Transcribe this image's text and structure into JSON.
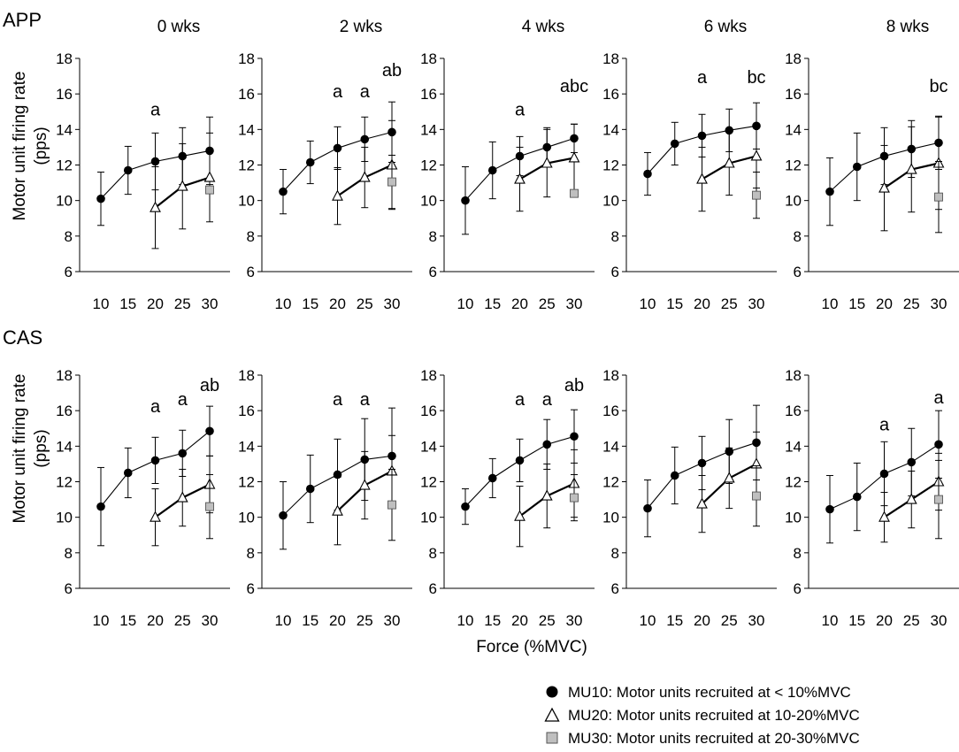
{
  "figure": {
    "xlabel": "Force (%MVC)",
    "ylabel_line1": "Motor unit firing rate",
    "ylabel_line2": "(pps)"
  },
  "legend": {
    "items": [
      {
        "series": "MU10",
        "label": "MU10: Motor units recruited at < 10%MVC"
      },
      {
        "series": "MU20",
        "label": "MU20: Motor units recruited at 10-20%MVC"
      },
      {
        "series": "MU30",
        "label": "MU30: Motor units recruited at 20-30%MVC"
      }
    ]
  },
  "colors": {
    "mu10": "#000000",
    "mu20": "#ffffff",
    "mu30": "#bfbfbf",
    "axis": "#000000"
  },
  "chart_data": [
    {
      "type": "line",
      "group": "APP",
      "title": "0 wks",
      "x": [
        10,
        15,
        20,
        25,
        30
      ],
      "xticks": [
        "10",
        "15",
        "20",
        "25",
        "30"
      ],
      "ylim": [
        6,
        18
      ],
      "yticks": [
        6,
        8,
        10,
        12,
        14,
        16,
        18
      ],
      "series": [
        {
          "name": "MU10",
          "x": [
            10,
            15,
            20,
            25,
            30
          ],
          "values": [
            10.1,
            11.7,
            12.2,
            12.5,
            12.8
          ],
          "err": [
            1.5,
            1.35,
            1.6,
            1.6,
            1.9
          ]
        },
        {
          "name": "MU20",
          "x": [
            20,
            25,
            30
          ],
          "values": [
            9.6,
            10.8,
            11.3
          ],
          "err": [
            2.3,
            2.4,
            2.5
          ]
        },
        {
          "name": "MU30",
          "x": [
            30
          ],
          "values": [
            10.6
          ],
          "err": [
            0
          ]
        }
      ],
      "annotations": [
        {
          "text": "a",
          "x": 20,
          "y": 14.8
        }
      ]
    },
    {
      "type": "line",
      "group": "APP",
      "title": "2 wks",
      "x": [
        10,
        15,
        20,
        25,
        30
      ],
      "xticks": [
        "10",
        "15",
        "20",
        "25",
        "30"
      ],
      "ylim": [
        6,
        18
      ],
      "yticks": [
        6,
        8,
        10,
        12,
        14,
        16,
        18
      ],
      "series": [
        {
          "name": "MU10",
          "x": [
            10,
            15,
            20,
            25,
            30
          ],
          "values": [
            10.5,
            12.15,
            12.95,
            13.45,
            13.85
          ],
          "err": [
            1.25,
            1.2,
            1.2,
            1.25,
            1.7
          ]
        },
        {
          "name": "MU20",
          "x": [
            20,
            25,
            30
          ],
          "values": [
            10.25,
            11.3,
            12.0
          ],
          "err": [
            1.6,
            1.7,
            2.5
          ]
        },
        {
          "name": "MU30",
          "x": [
            30
          ],
          "values": [
            11.05
          ],
          "err": [
            1.5
          ]
        }
      ],
      "annotations": [
        {
          "text": "a",
          "x": 20,
          "y": 15.8
        },
        {
          "text": "a",
          "x": 25,
          "y": 15.8
        },
        {
          "text": "ab",
          "x": 30,
          "y": 17.0
        }
      ]
    },
    {
      "type": "line",
      "group": "APP",
      "title": "4 wks",
      "x": [
        10,
        15,
        20,
        25,
        30
      ],
      "xticks": [
        "10",
        "15",
        "20",
        "25",
        "30"
      ],
      "ylim": [
        6,
        18
      ],
      "yticks": [
        6,
        8,
        10,
        12,
        14,
        16,
        18
      ],
      "series": [
        {
          "name": "MU10",
          "x": [
            10,
            15,
            20,
            25,
            30
          ],
          "values": [
            10.0,
            11.7,
            12.5,
            13.0,
            13.5
          ],
          "err": [
            1.9,
            1.6,
            1.1,
            1.1,
            0.8
          ]
        },
        {
          "name": "MU20",
          "x": [
            20,
            25,
            30
          ],
          "values": [
            11.2,
            12.1,
            12.4
          ],
          "err": [
            1.8,
            1.9,
            1.9
          ]
        },
        {
          "name": "MU30",
          "x": [
            30
          ],
          "values": [
            10.4
          ],
          "err": [
            0
          ]
        }
      ],
      "annotations": [
        {
          "text": "a",
          "x": 20,
          "y": 14.8
        },
        {
          "text": "abc",
          "x": 30,
          "y": 16.1
        }
      ]
    },
    {
      "type": "line",
      "group": "APP",
      "title": "6 wks",
      "x": [
        10,
        15,
        20,
        25,
        30
      ],
      "xticks": [
        "10",
        "15",
        "20",
        "25",
        "30"
      ],
      "ylim": [
        6,
        18
      ],
      "yticks": [
        6,
        8,
        10,
        12,
        14,
        16,
        18
      ],
      "series": [
        {
          "name": "MU10",
          "x": [
            10,
            15,
            20,
            25,
            30
          ],
          "values": [
            11.5,
            13.2,
            13.65,
            13.95,
            14.2
          ],
          "err": [
            1.2,
            1.2,
            1.2,
            1.2,
            1.3
          ]
        },
        {
          "name": "MU20",
          "x": [
            20,
            25,
            30
          ],
          "values": [
            11.2,
            12.1,
            12.5
          ],
          "err": [
            1.8,
            1.8,
            1.8
          ]
        },
        {
          "name": "MU30",
          "x": [
            30
          ],
          "values": [
            10.3
          ],
          "err": [
            1.3
          ]
        }
      ],
      "annotations": [
        {
          "text": "a",
          "x": 20,
          "y": 16.6
        },
        {
          "text": "bc",
          "x": 30,
          "y": 16.6
        }
      ]
    },
    {
      "type": "line",
      "group": "APP",
      "title": "8 wks",
      "x": [
        10,
        15,
        20,
        25,
        30
      ],
      "xticks": [
        "10",
        "15",
        "20",
        "25",
        "30"
      ],
      "ylim": [
        6,
        18
      ],
      "yticks": [
        6,
        8,
        10,
        12,
        14,
        16,
        18
      ],
      "series": [
        {
          "name": "MU10",
          "x": [
            10,
            15,
            20,
            25,
            30
          ],
          "values": [
            10.5,
            11.9,
            12.5,
            12.9,
            13.25
          ],
          "err": [
            1.9,
            1.9,
            1.6,
            1.6,
            1.5
          ]
        },
        {
          "name": "MU20",
          "x": [
            20,
            25,
            30
          ],
          "values": [
            10.7,
            11.75,
            12.1
          ],
          "err": [
            2.4,
            2.4,
            2.6
          ]
        },
        {
          "name": "MU30",
          "x": [
            30
          ],
          "values": [
            10.2
          ],
          "err": [
            2.0
          ]
        }
      ],
      "annotations": [
        {
          "text": "bc",
          "x": 30,
          "y": 16.1
        }
      ]
    },
    {
      "type": "line",
      "group": "CAS",
      "title": "",
      "x": [
        10,
        15,
        20,
        25,
        30
      ],
      "xticks": [
        "10",
        "15",
        "20",
        "25",
        "30"
      ],
      "ylim": [
        6,
        18
      ],
      "yticks": [
        6,
        8,
        10,
        12,
        14,
        16,
        18
      ],
      "series": [
        {
          "name": "MU10",
          "x": [
            10,
            15,
            20,
            25,
            30
          ],
          "values": [
            10.6,
            12.5,
            13.2,
            13.6,
            14.85
          ],
          "err": [
            2.2,
            1.4,
            1.3,
            1.3,
            1.4
          ]
        },
        {
          "name": "MU20",
          "x": [
            20,
            25,
            30
          ],
          "values": [
            10.0,
            11.1,
            11.85
          ],
          "err": [
            1.6,
            1.6,
            1.6
          ]
        },
        {
          "name": "MU30",
          "x": [
            30
          ],
          "values": [
            10.6
          ],
          "err": [
            1.8
          ]
        }
      ],
      "annotations": [
        {
          "text": "a",
          "x": 20,
          "y": 15.9
        },
        {
          "text": "a",
          "x": 25,
          "y": 16.3
        },
        {
          "text": "ab",
          "x": 30,
          "y": 17.1
        }
      ]
    },
    {
      "type": "line",
      "group": "CAS",
      "title": "",
      "x": [
        10,
        15,
        20,
        25,
        30
      ],
      "xticks": [
        "10",
        "15",
        "20",
        "25",
        "30"
      ],
      "ylim": [
        6,
        18
      ],
      "yticks": [
        6,
        8,
        10,
        12,
        14,
        16,
        18
      ],
      "series": [
        {
          "name": "MU10",
          "x": [
            10,
            15,
            20,
            25,
            30
          ],
          "values": [
            10.1,
            11.6,
            12.4,
            13.25,
            13.45
          ],
          "err": [
            1.9,
            1.9,
            2.0,
            2.3,
            2.7
          ]
        },
        {
          "name": "MU20",
          "x": [
            20,
            25,
            30
          ],
          "values": [
            10.35,
            11.8,
            12.6
          ],
          "err": [
            1.9,
            1.9,
            2.0
          ]
        },
        {
          "name": "MU30",
          "x": [
            30
          ],
          "values": [
            10.7
          ],
          "err": [
            2.0
          ]
        }
      ],
      "annotations": [
        {
          "text": "a",
          "x": 20,
          "y": 16.3
        },
        {
          "text": "a",
          "x": 25,
          "y": 16.3
        }
      ]
    },
    {
      "type": "line",
      "group": "CAS",
      "title": "",
      "x": [
        10,
        15,
        20,
        25,
        30
      ],
      "xticks": [
        "10",
        "15",
        "20",
        "25",
        "30"
      ],
      "ylim": [
        6,
        18
      ],
      "yticks": [
        6,
        8,
        10,
        12,
        14,
        16,
        18
      ],
      "series": [
        {
          "name": "MU10",
          "x": [
            10,
            15,
            20,
            25,
            30
          ],
          "values": [
            10.6,
            12.2,
            13.2,
            14.1,
            14.55
          ],
          "err": [
            1.0,
            1.1,
            1.2,
            1.4,
            1.5
          ]
        },
        {
          "name": "MU20",
          "x": [
            20,
            25,
            30
          ],
          "values": [
            10.05,
            11.2,
            11.9
          ],
          "err": [
            1.7,
            1.8,
            1.9
          ]
        },
        {
          "name": "MU30",
          "x": [
            30
          ],
          "values": [
            11.1
          ],
          "err": [
            1.3
          ]
        }
      ],
      "annotations": [
        {
          "text": "a",
          "x": 20,
          "y": 16.3
        },
        {
          "text": "a",
          "x": 25,
          "y": 16.3
        },
        {
          "text": "ab",
          "x": 30,
          "y": 17.1
        }
      ]
    },
    {
      "type": "line",
      "group": "CAS",
      "title": "",
      "x": [
        10,
        15,
        20,
        25,
        30
      ],
      "xticks": [
        "10",
        "15",
        "20",
        "25",
        "30"
      ],
      "ylim": [
        6,
        18
      ],
      "yticks": [
        6,
        8,
        10,
        12,
        14,
        16,
        18
      ],
      "series": [
        {
          "name": "MU10",
          "x": [
            10,
            15,
            20,
            25,
            30
          ],
          "values": [
            10.5,
            12.35,
            13.05,
            13.7,
            14.2
          ],
          "err": [
            1.6,
            1.6,
            1.5,
            1.8,
            2.1
          ]
        },
        {
          "name": "MU20",
          "x": [
            20,
            25,
            30
          ],
          "values": [
            10.75,
            12.2,
            13.0
          ],
          "err": [
            1.6,
            1.7,
            1.8
          ]
        },
        {
          "name": "MU30",
          "x": [
            30
          ],
          "values": [
            11.2
          ],
          "err": [
            1.7
          ]
        }
      ],
      "annotations": []
    },
    {
      "type": "line",
      "group": "CAS",
      "title": "",
      "x": [
        10,
        15,
        20,
        25,
        30
      ],
      "xticks": [
        "10",
        "15",
        "20",
        "25",
        "30"
      ],
      "ylim": [
        6,
        18
      ],
      "yticks": [
        6,
        8,
        10,
        12,
        14,
        16,
        18
      ],
      "series": [
        {
          "name": "MU10",
          "x": [
            10,
            15,
            20,
            25,
            30
          ],
          "values": [
            10.45,
            11.15,
            12.45,
            13.1,
            14.1
          ],
          "err": [
            1.9,
            1.9,
            1.8,
            1.9,
            1.9
          ]
        },
        {
          "name": "MU20",
          "x": [
            20,
            25,
            30
          ],
          "values": [
            10.0,
            11.0,
            12.0
          ],
          "err": [
            1.4,
            1.6,
            1.6
          ]
        },
        {
          "name": "MU30",
          "x": [
            30
          ],
          "values": [
            11.0
          ],
          "err": [
            2.2
          ]
        }
      ],
      "annotations": [
        {
          "text": "a",
          "x": 20,
          "y": 14.9
        },
        {
          "text": "a",
          "x": 30,
          "y": 16.4
        }
      ]
    }
  ],
  "groups": [
    {
      "name": "APP"
    },
    {
      "name": "CAS"
    }
  ]
}
